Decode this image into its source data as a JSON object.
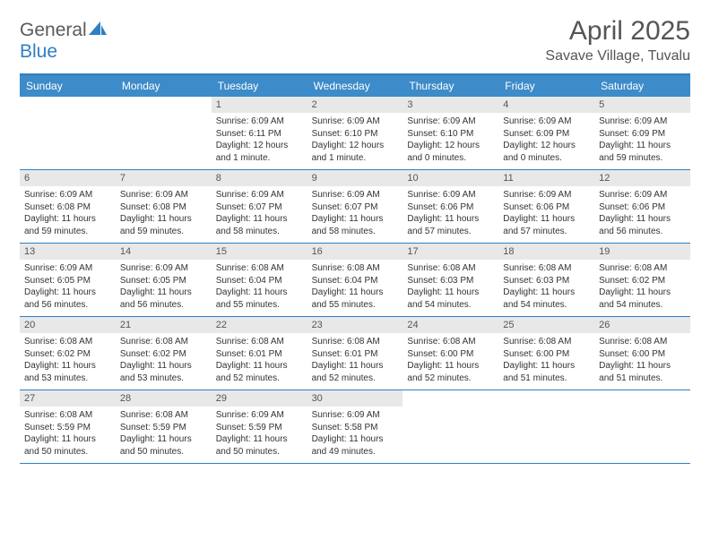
{
  "brand": {
    "general": "General",
    "blue": "Blue"
  },
  "title": "April 2025",
  "location": "Savave Village, Tuvalu",
  "colors": {
    "header_bg": "#3d8bc8",
    "border": "#2f7fc2",
    "daynum_bg": "#e8e8e8",
    "text": "#333333",
    "title_text": "#555555"
  },
  "dayNames": [
    "Sunday",
    "Monday",
    "Tuesday",
    "Wednesday",
    "Thursday",
    "Friday",
    "Saturday"
  ],
  "weeks": [
    [
      {
        "n": "",
        "s": ""
      },
      {
        "n": "",
        "s": ""
      },
      {
        "n": "1",
        "s": "Sunrise: 6:09 AM\nSunset: 6:11 PM\nDaylight: 12 hours and 1 minute."
      },
      {
        "n": "2",
        "s": "Sunrise: 6:09 AM\nSunset: 6:10 PM\nDaylight: 12 hours and 1 minute."
      },
      {
        "n": "3",
        "s": "Sunrise: 6:09 AM\nSunset: 6:10 PM\nDaylight: 12 hours and 0 minutes."
      },
      {
        "n": "4",
        "s": "Sunrise: 6:09 AM\nSunset: 6:09 PM\nDaylight: 12 hours and 0 minutes."
      },
      {
        "n": "5",
        "s": "Sunrise: 6:09 AM\nSunset: 6:09 PM\nDaylight: 11 hours and 59 minutes."
      }
    ],
    [
      {
        "n": "6",
        "s": "Sunrise: 6:09 AM\nSunset: 6:08 PM\nDaylight: 11 hours and 59 minutes."
      },
      {
        "n": "7",
        "s": "Sunrise: 6:09 AM\nSunset: 6:08 PM\nDaylight: 11 hours and 59 minutes."
      },
      {
        "n": "8",
        "s": "Sunrise: 6:09 AM\nSunset: 6:07 PM\nDaylight: 11 hours and 58 minutes."
      },
      {
        "n": "9",
        "s": "Sunrise: 6:09 AM\nSunset: 6:07 PM\nDaylight: 11 hours and 58 minutes."
      },
      {
        "n": "10",
        "s": "Sunrise: 6:09 AM\nSunset: 6:06 PM\nDaylight: 11 hours and 57 minutes."
      },
      {
        "n": "11",
        "s": "Sunrise: 6:09 AM\nSunset: 6:06 PM\nDaylight: 11 hours and 57 minutes."
      },
      {
        "n": "12",
        "s": "Sunrise: 6:09 AM\nSunset: 6:06 PM\nDaylight: 11 hours and 56 minutes."
      }
    ],
    [
      {
        "n": "13",
        "s": "Sunrise: 6:09 AM\nSunset: 6:05 PM\nDaylight: 11 hours and 56 minutes."
      },
      {
        "n": "14",
        "s": "Sunrise: 6:09 AM\nSunset: 6:05 PM\nDaylight: 11 hours and 56 minutes."
      },
      {
        "n": "15",
        "s": "Sunrise: 6:08 AM\nSunset: 6:04 PM\nDaylight: 11 hours and 55 minutes."
      },
      {
        "n": "16",
        "s": "Sunrise: 6:08 AM\nSunset: 6:04 PM\nDaylight: 11 hours and 55 minutes."
      },
      {
        "n": "17",
        "s": "Sunrise: 6:08 AM\nSunset: 6:03 PM\nDaylight: 11 hours and 54 minutes."
      },
      {
        "n": "18",
        "s": "Sunrise: 6:08 AM\nSunset: 6:03 PM\nDaylight: 11 hours and 54 minutes."
      },
      {
        "n": "19",
        "s": "Sunrise: 6:08 AM\nSunset: 6:02 PM\nDaylight: 11 hours and 54 minutes."
      }
    ],
    [
      {
        "n": "20",
        "s": "Sunrise: 6:08 AM\nSunset: 6:02 PM\nDaylight: 11 hours and 53 minutes."
      },
      {
        "n": "21",
        "s": "Sunrise: 6:08 AM\nSunset: 6:02 PM\nDaylight: 11 hours and 53 minutes."
      },
      {
        "n": "22",
        "s": "Sunrise: 6:08 AM\nSunset: 6:01 PM\nDaylight: 11 hours and 52 minutes."
      },
      {
        "n": "23",
        "s": "Sunrise: 6:08 AM\nSunset: 6:01 PM\nDaylight: 11 hours and 52 minutes."
      },
      {
        "n": "24",
        "s": "Sunrise: 6:08 AM\nSunset: 6:00 PM\nDaylight: 11 hours and 52 minutes."
      },
      {
        "n": "25",
        "s": "Sunrise: 6:08 AM\nSunset: 6:00 PM\nDaylight: 11 hours and 51 minutes."
      },
      {
        "n": "26",
        "s": "Sunrise: 6:08 AM\nSunset: 6:00 PM\nDaylight: 11 hours and 51 minutes."
      }
    ],
    [
      {
        "n": "27",
        "s": "Sunrise: 6:08 AM\nSunset: 5:59 PM\nDaylight: 11 hours and 50 minutes."
      },
      {
        "n": "28",
        "s": "Sunrise: 6:08 AM\nSunset: 5:59 PM\nDaylight: 11 hours and 50 minutes."
      },
      {
        "n": "29",
        "s": "Sunrise: 6:09 AM\nSunset: 5:59 PM\nDaylight: 11 hours and 50 minutes."
      },
      {
        "n": "30",
        "s": "Sunrise: 6:09 AM\nSunset: 5:58 PM\nDaylight: 11 hours and 49 minutes."
      },
      {
        "n": "",
        "s": ""
      },
      {
        "n": "",
        "s": ""
      },
      {
        "n": "",
        "s": ""
      }
    ]
  ]
}
